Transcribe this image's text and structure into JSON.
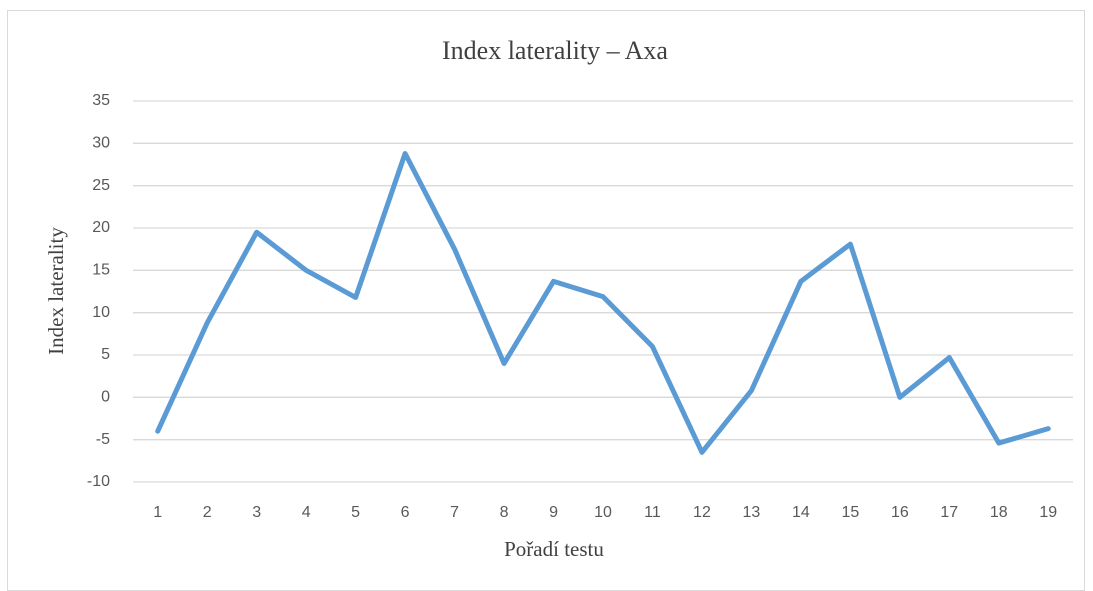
{
  "chart_data": {
    "type": "line",
    "title": "Index laterality – Axa",
    "x_label": "Pořadí testu",
    "y_label": "Index laterality",
    "categories": [
      1,
      2,
      3,
      4,
      5,
      6,
      7,
      8,
      9,
      10,
      11,
      12,
      13,
      14,
      15,
      16,
      17,
      18,
      19
    ],
    "values": [
      -4.0,
      8.8,
      19.5,
      15.0,
      11.8,
      28.8,
      17.5,
      4.0,
      13.7,
      11.9,
      6.0,
      -6.5,
      0.8,
      13.7,
      18.1,
      0,
      4.7,
      -5.4,
      -3.7
    ],
    "color": "#5b9bd5",
    "ylim": [
      -10,
      35
    ],
    "yticks": [
      -10,
      -5,
      0,
      5,
      10,
      15,
      20,
      25,
      30,
      35
    ],
    "grid": true
  }
}
